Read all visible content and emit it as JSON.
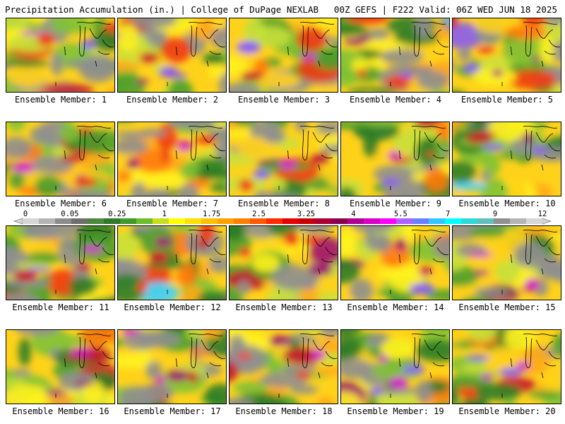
{
  "header": {
    "title_left": "Precipitation Accumulation (in.) | College of DuPage NEXLAB",
    "title_right": "00Z GEFS | F222 Valid: 06Z WED JUN 18 2025"
  },
  "colors": {
    "background": "#ffffff",
    "map_outline": "#000000"
  },
  "panels": [
    {
      "label": "Ensemble Member: 1"
    },
    {
      "label": "Ensemble Member: 2"
    },
    {
      "label": "Ensemble Member: 3"
    },
    {
      "label": "Ensemble Member: 4"
    },
    {
      "label": "Ensemble Member: 5"
    },
    {
      "label": "Ensemble Member: 6"
    },
    {
      "label": "Ensemble Member: 7"
    },
    {
      "label": "Ensemble Member: 8"
    },
    {
      "label": "Ensemble Member: 9"
    },
    {
      "label": "Ensemble Member: 10"
    },
    {
      "label": "Ensemble Member: 11"
    },
    {
      "label": "Ensemble Member: 12"
    },
    {
      "label": "Ensemble Member: 13"
    },
    {
      "label": "Ensemble Member: 14"
    },
    {
      "label": "Ensemble Member: 15"
    },
    {
      "label": "Ensemble Member: 16"
    },
    {
      "label": "Ensemble Member: 17"
    },
    {
      "label": "Ensemble Member: 18"
    },
    {
      "label": "Ensemble Member: 19"
    },
    {
      "label": "Ensemble Member: 20"
    }
  ],
  "colorbar": {
    "labels": [
      "0",
      "0.05",
      "0.25",
      "1",
      "1.75",
      "2.5",
      "3.25",
      "4",
      "5.5",
      "7",
      "9",
      "12"
    ],
    "colors": [
      "#d6d6d6",
      "#b4b4b4",
      "#8c8c8c",
      "#6e6e6e",
      "#4a8a3a",
      "#2f7a2a",
      "#3e9a2a",
      "#6cbf2a",
      "#c8df20",
      "#ffff00",
      "#ffe000",
      "#ffc000",
      "#ffa000",
      "#ff7f00",
      "#ff5a00",
      "#ff2a00",
      "#e60000",
      "#c80000",
      "#aa0030",
      "#8a0050",
      "#b00090",
      "#d800c8",
      "#ff00ff",
      "#b060ff",
      "#6a80ff",
      "#30c8ff",
      "#00ffff",
      "#30d8d8",
      "#60c0c0",
      "#909090",
      "#b4b4b4",
      "#d6d6d6"
    ]
  }
}
